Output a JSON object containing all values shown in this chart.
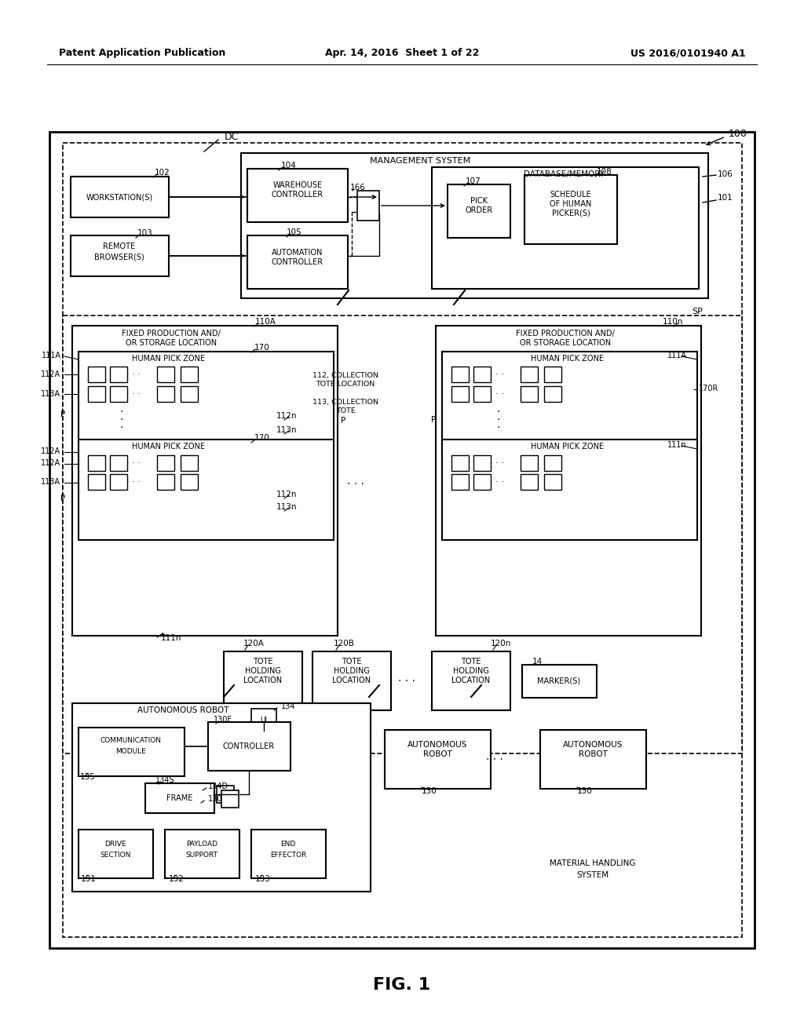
{
  "bg": "#ffffff",
  "header_left": "Patent Application Publication",
  "header_center": "Apr. 14, 2016  Sheet 1 of 22",
  "header_right": "US 2016/0101940 A1",
  "footer": "FIG. 1"
}
